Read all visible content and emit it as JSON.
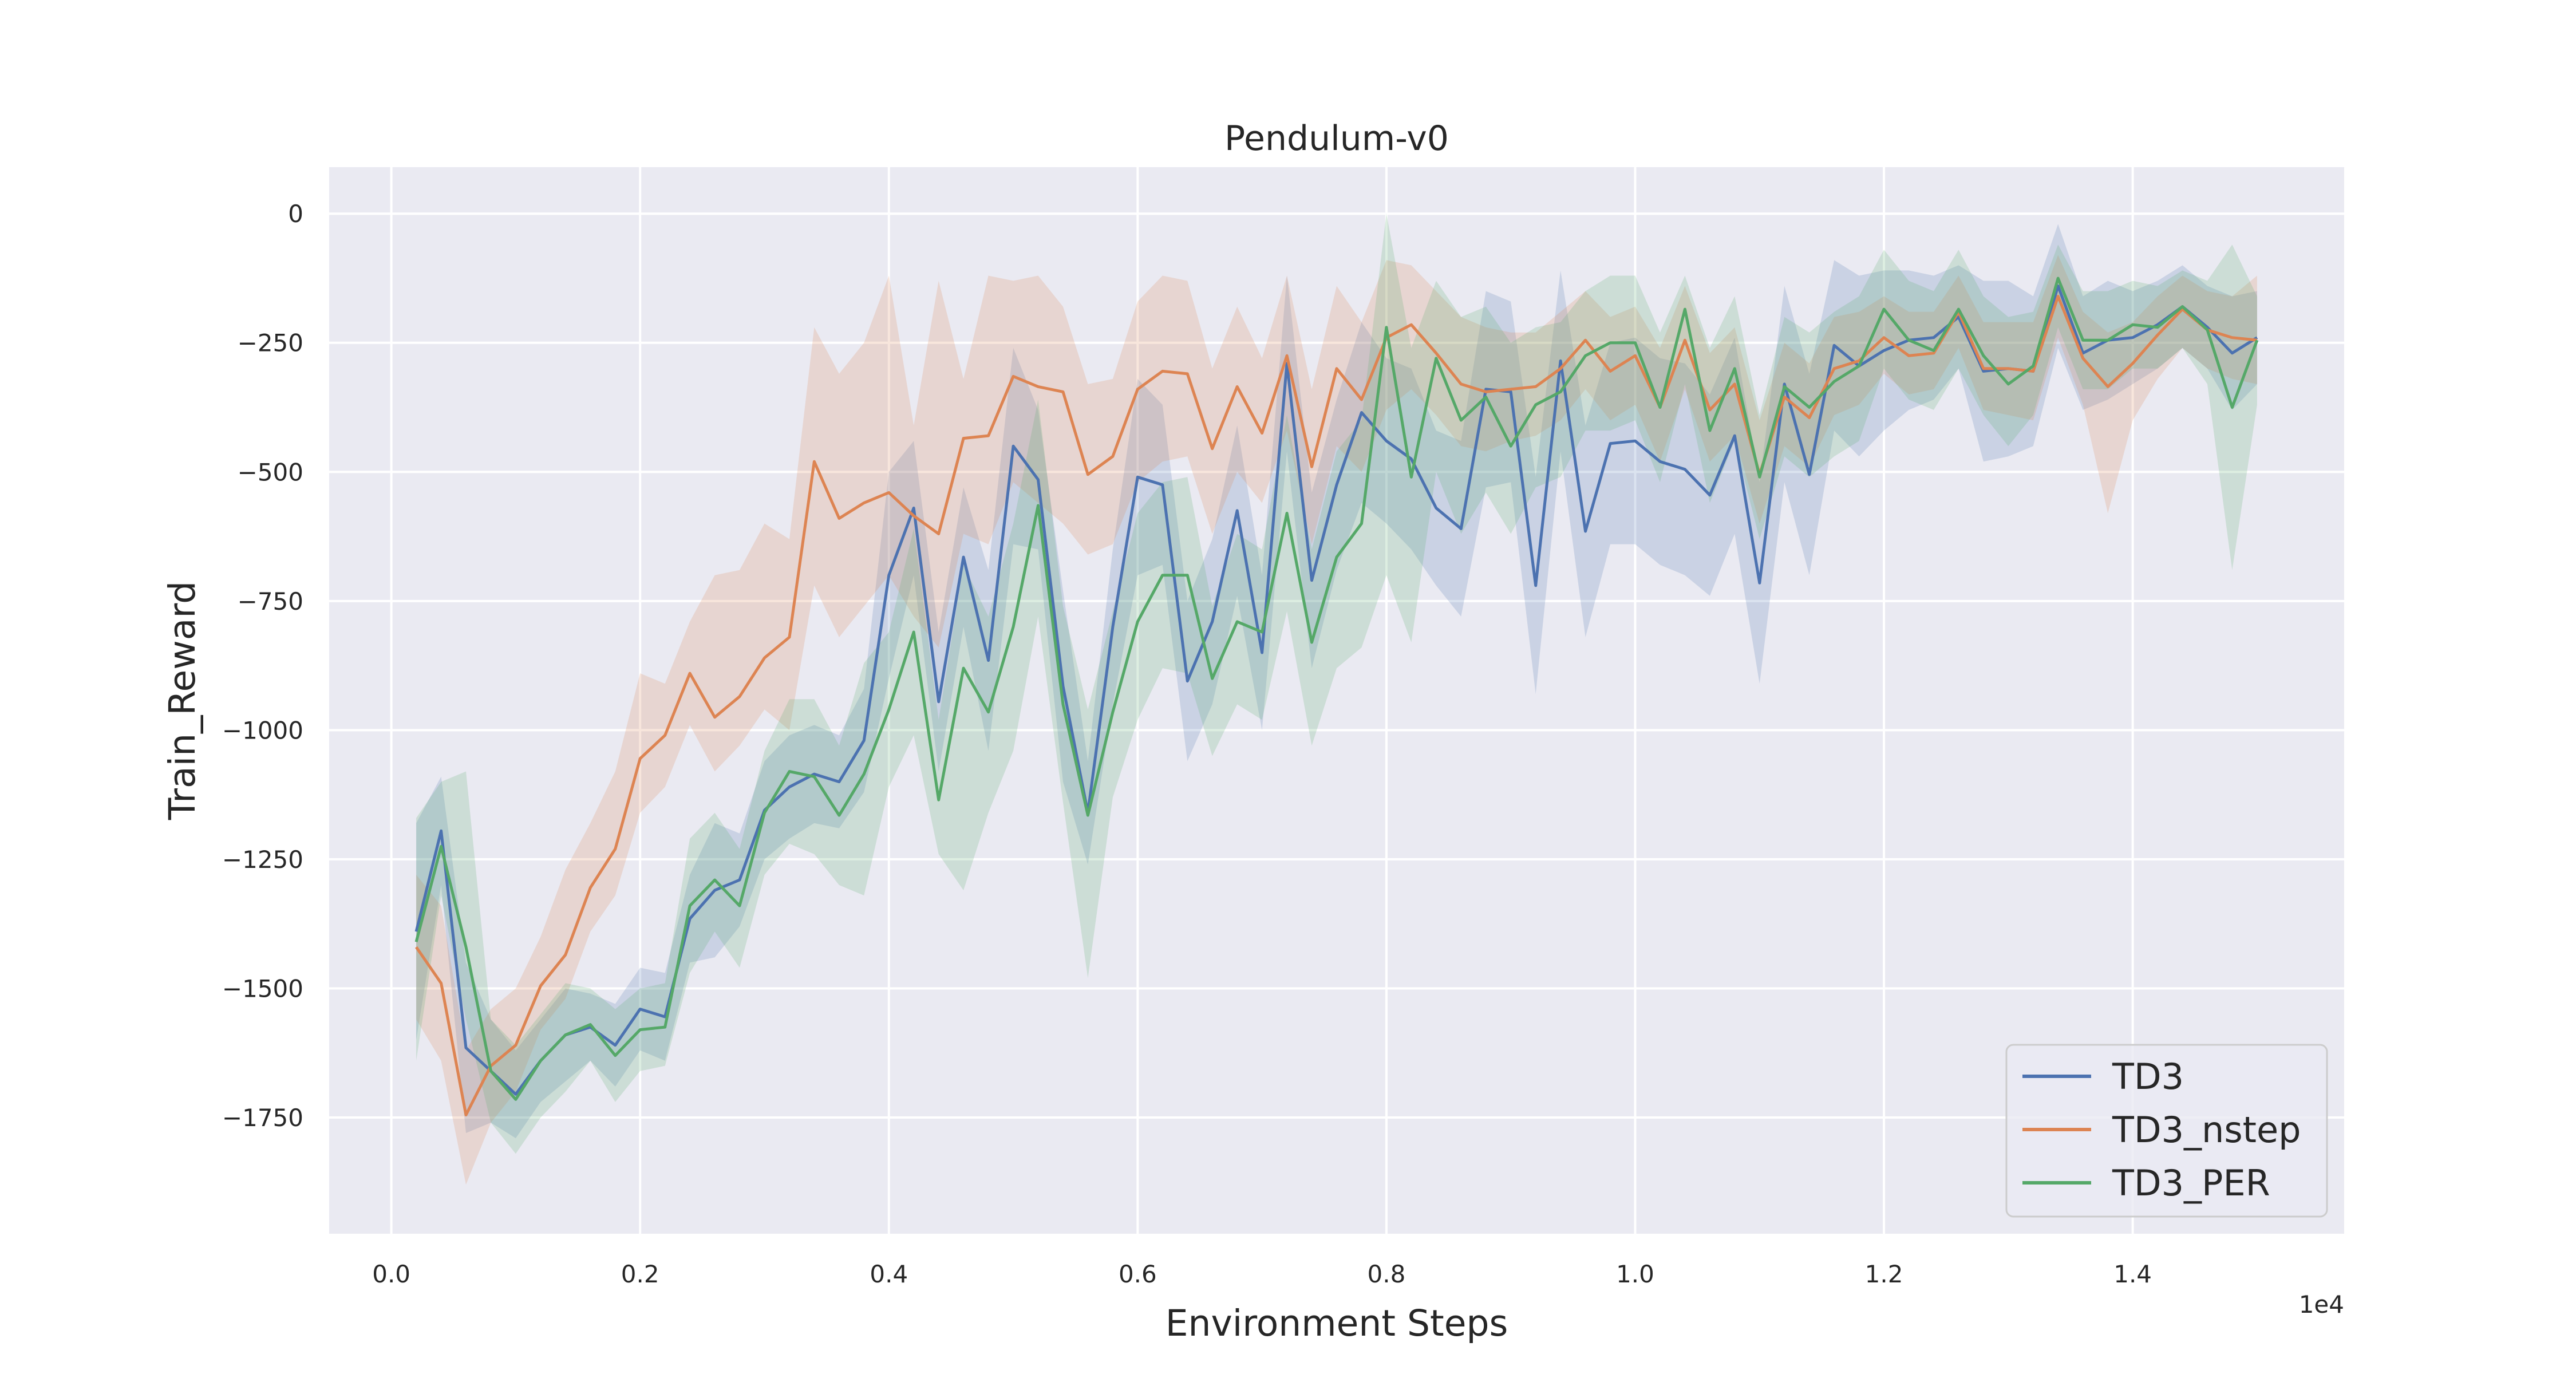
{
  "chart_data": {
    "type": "line",
    "title": "Pendulum-v0",
    "xlabel": "Environment Steps",
    "ylabel": "Train_Reward",
    "x_offset_label": "1e4",
    "x_scale_factor": 10000,
    "xlim": [
      -500,
      15700
    ],
    "ylim": [
      -1975,
      90
    ],
    "xticks": [
      0,
      2000,
      4000,
      6000,
      8000,
      10000,
      12000,
      14000
    ],
    "xtick_labels": [
      "0.0",
      "0.2",
      "0.4",
      "0.6",
      "0.8",
      "1.0",
      "1.2",
      "1.4"
    ],
    "yticks": [
      0,
      -250,
      -500,
      -750,
      -1000,
      -1250,
      -1500,
      -1750
    ],
    "ytick_labels": [
      "0",
      "−250",
      "−500",
      "−750",
      "−1000",
      "−1250",
      "−1500",
      "−1750"
    ],
    "grid": true,
    "background": "#eaeaf2",
    "legend_position": "lower right",
    "x": [
      200,
      400,
      600,
      800,
      1000,
      1200,
      1400,
      1600,
      1800,
      2000,
      2200,
      2400,
      2600,
      2800,
      3000,
      3200,
      3400,
      3600,
      3800,
      4000,
      4200,
      4400,
      4600,
      4800,
      5000,
      5200,
      5400,
      5600,
      5800,
      6000,
      6200,
      6400,
      6600,
      6800,
      7000,
      7200,
      7400,
      7600,
      7800,
      8000,
      8200,
      8400,
      8600,
      8800,
      9000,
      9200,
      9400,
      9600,
      9800,
      10000,
      10200,
      10400,
      10600,
      10800,
      11000,
      11200,
      11400,
      11600,
      11800,
      12000,
      12200,
      12400,
      12600,
      12800,
      13000,
      13200,
      13400,
      13600,
      13800,
      14000,
      14200,
      14400,
      14600,
      14800,
      15000
    ],
    "series": [
      {
        "name": "TD3",
        "color": "#4c72b0",
        "values": [
          -1390,
          -1195,
          -1615,
          -1660,
          -1705,
          -1640,
          -1590,
          -1575,
          -1610,
          -1540,
          -1555,
          -1365,
          -1310,
          -1290,
          -1155,
          -1110,
          -1085,
          -1100,
          -1020,
          -700,
          -570,
          -945,
          -665,
          -865,
          -450,
          -515,
          -915,
          -1160,
          -800,
          -510,
          -525,
          -905,
          -790,
          -575,
          -850,
          -290,
          -710,
          -525,
          -385,
          -440,
          -475,
          -570,
          -610,
          -340,
          -345,
          -720,
          -285,
          -615,
          -445,
          -440,
          -480,
          -495,
          -545,
          -430,
          -715,
          -330,
          -505,
          -255,
          -295,
          -265,
          -245,
          -240,
          -200,
          -305,
          -300,
          -305,
          -140,
          -270,
          -245,
          -240,
          -215,
          -180,
          -220,
          -270,
          -240
        ],
        "lower": [
          -1600,
          -1300,
          -1780,
          -1760,
          -1790,
          -1720,
          -1680,
          -1640,
          -1690,
          -1620,
          -1640,
          -1450,
          -1440,
          -1380,
          -1250,
          -1210,
          -1180,
          -1190,
          -1120,
          -900,
          -700,
          -1080,
          -800,
          -1040,
          -640,
          -650,
          -1100,
          -1260,
          -950,
          -700,
          -680,
          -1060,
          -950,
          -740,
          -1000,
          -460,
          -880,
          -690,
          -560,
          -600,
          -650,
          -720,
          -780,
          -530,
          -520,
          -930,
          -460,
          -820,
          -640,
          -640,
          -680,
          -700,
          -740,
          -620,
          -910,
          -520,
          -700,
          -420,
          -470,
          -420,
          -380,
          -360,
          -300,
          -480,
          -470,
          -450,
          -260,
          -380,
          -360,
          -330,
          -300,
          -260,
          -300,
          -380,
          -330
        ],
        "upper": [
          -1180,
          -1090,
          -1450,
          -1560,
          -1620,
          -1560,
          -1500,
          -1510,
          -1530,
          -1460,
          -1470,
          -1280,
          -1180,
          -1200,
          -1060,
          -1010,
          -990,
          -1010,
          -920,
          -500,
          -440,
          -810,
          -530,
          -690,
          -260,
          -380,
          -730,
          -1060,
          -650,
          -320,
          -370,
          -750,
          -630,
          -410,
          -700,
          -120,
          -540,
          -360,
          -210,
          -280,
          -300,
          -420,
          -440,
          -150,
          -170,
          -510,
          -110,
          -410,
          -250,
          -240,
          -280,
          -290,
          -350,
          -240,
          -520,
          -140,
          -310,
          -90,
          -120,
          -110,
          -110,
          -120,
          -100,
          -130,
          -130,
          -160,
          -20,
          -160,
          -130,
          -150,
          -130,
          -100,
          -140,
          -160,
          -150
        ]
      },
      {
        "name": "TD3_nstep",
        "color": "#dd8452",
        "values": [
          -1420,
          -1490,
          -1745,
          -1650,
          -1610,
          -1495,
          -1435,
          -1305,
          -1230,
          -1055,
          -1010,
          -890,
          -975,
          -935,
          -860,
          -820,
          -480,
          -590,
          -560,
          -540,
          -585,
          -620,
          -435,
          -430,
          -315,
          -335,
          -345,
          -505,
          -470,
          -340,
          -305,
          -310,
          -455,
          -335,
          -425,
          -275,
          -490,
          -300,
          -360,
          -240,
          -215,
          -270,
          -330,
          -345,
          -340,
          -335,
          -300,
          -245,
          -305,
          -275,
          -375,
          -245,
          -380,
          -330,
          -505,
          -355,
          -395,
          -300,
          -285,
          -240,
          -275,
          -270,
          -190,
          -300,
          -300,
          -305,
          -160,
          -280,
          -335,
          -290,
          -235,
          -185,
          -225,
          -240,
          -245
        ],
        "lower": [
          -1560,
          -1640,
          -1880,
          -1760,
          -1700,
          -1580,
          -1520,
          -1390,
          -1320,
          -1160,
          -1110,
          -990,
          -1080,
          -1030,
          -960,
          -1000,
          -720,
          -820,
          -760,
          -700,
          -780,
          -840,
          -620,
          -640,
          -520,
          -560,
          -600,
          -660,
          -640,
          -520,
          -480,
          -470,
          -620,
          -500,
          -560,
          -420,
          -640,
          -450,
          -500,
          -380,
          -340,
          -390,
          -450,
          -460,
          -440,
          -430,
          -400,
          -340,
          -400,
          -370,
          -480,
          -340,
          -480,
          -430,
          -600,
          -450,
          -490,
          -390,
          -370,
          -310,
          -350,
          -340,
          -260,
          -380,
          -390,
          -400,
          -240,
          -370,
          -580,
          -400,
          -320,
          -260,
          -300,
          -320,
          -330
        ],
        "upper": [
          -1280,
          -1340,
          -1620,
          -1540,
          -1500,
          -1400,
          -1270,
          -1180,
          -1080,
          -890,
          -910,
          -790,
          -700,
          -690,
          -600,
          -630,
          -220,
          -310,
          -250,
          -120,
          -410,
          -130,
          -320,
          -120,
          -130,
          -120,
          -180,
          -330,
          -320,
          -170,
          -120,
          -130,
          -300,
          -180,
          -280,
          -120,
          -340,
          -140,
          -210,
          -90,
          -100,
          -150,
          -200,
          -220,
          -230,
          -230,
          -190,
          -150,
          -200,
          -180,
          -260,
          -140,
          -270,
          -220,
          -400,
          -250,
          -290,
          -200,
          -190,
          -160,
          -190,
          -190,
          -120,
          -210,
          -210,
          -210,
          -80,
          -190,
          -230,
          -210,
          -160,
          -120,
          -150,
          -160,
          -120
        ]
      },
      {
        "name": "TD3_PER",
        "color": "#55a868",
        "values": [
          -1410,
          -1225,
          -1420,
          -1660,
          -1715,
          -1640,
          -1590,
          -1570,
          -1630,
          -1580,
          -1575,
          -1340,
          -1290,
          -1340,
          -1160,
          -1080,
          -1090,
          -1165,
          -1085,
          -960,
          -810,
          -1135,
          -880,
          -965,
          -800,
          -565,
          -950,
          -1165,
          -965,
          -790,
          -700,
          -700,
          -900,
          -790,
          -810,
          -580,
          -830,
          -665,
          -600,
          -220,
          -510,
          -280,
          -400,
          -355,
          -450,
          -370,
          -345,
          -275,
          -250,
          -250,
          -375,
          -185,
          -420,
          -300,
          -510,
          -335,
          -375,
          -325,
          -295,
          -185,
          -245,
          -265,
          -185,
          -275,
          -330,
          -295,
          -125,
          -245,
          -245,
          -215,
          -220,
          -180,
          -225,
          -375,
          -245
        ],
        "lower": [
          -1640,
          -1320,
          -1560,
          -1760,
          -1820,
          -1750,
          -1700,
          -1640,
          -1720,
          -1660,
          -1650,
          -1470,
          -1390,
          -1460,
          -1280,
          -1220,
          -1240,
          -1300,
          -1320,
          -1110,
          -1010,
          -1240,
          -1310,
          -1160,
          -1040,
          -780,
          -1140,
          -1480,
          -1130,
          -980,
          -880,
          -890,
          -1050,
          -950,
          -980,
          -770,
          -1030,
          -880,
          -840,
          -700,
          -830,
          -500,
          -620,
          -540,
          -620,
          -530,
          -510,
          -420,
          -420,
          -400,
          -520,
          -330,
          -560,
          -440,
          -630,
          -470,
          -510,
          -470,
          -440,
          -300,
          -360,
          -380,
          -300,
          -390,
          -450,
          -390,
          -220,
          -340,
          -340,
          -300,
          -300,
          -260,
          -330,
          -690,
          -370
        ],
        "upper": [
          -1170,
          -1100,
          -1080,
          -1560,
          -1610,
          -1550,
          -1490,
          -1500,
          -1540,
          -1500,
          -1490,
          -1210,
          -1160,
          -1230,
          -1040,
          -940,
          -940,
          -1030,
          -870,
          -810,
          -610,
          -980,
          -680,
          -780,
          -600,
          -360,
          -760,
          -960,
          -770,
          -580,
          -520,
          -510,
          -760,
          -620,
          -650,
          -390,
          -650,
          -460,
          -400,
          0,
          -260,
          -130,
          -200,
          -180,
          -250,
          -220,
          -210,
          -150,
          -120,
          -120,
          -230,
          -120,
          -260,
          -160,
          -390,
          -200,
          -230,
          -190,
          -160,
          -70,
          -130,
          -150,
          -70,
          -160,
          -200,
          -190,
          -60,
          -150,
          -150,
          -130,
          -140,
          -110,
          -130,
          -60,
          -160
        ]
      }
    ]
  }
}
